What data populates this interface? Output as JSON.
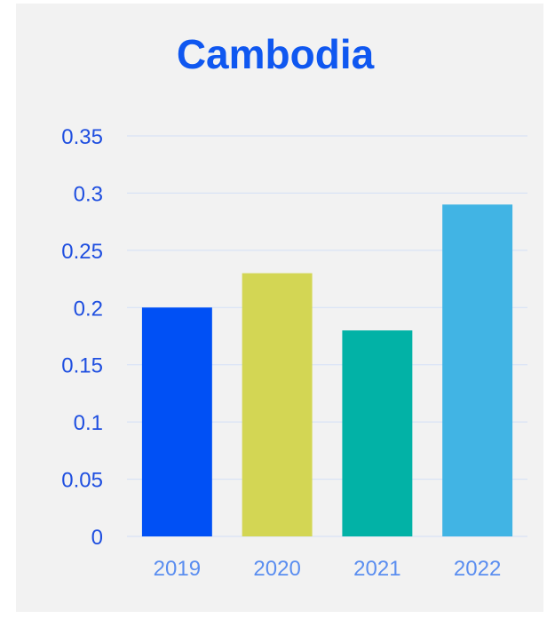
{
  "chart_data": {
    "type": "bar",
    "title": "Cambodia",
    "xlabel": "",
    "ylabel": "",
    "categories": [
      "2019",
      "2020",
      "2021",
      "2022"
    ],
    "values": [
      0.2,
      0.23,
      0.18,
      0.29
    ],
    "colors": [
      "#0050f5",
      "#d3d654",
      "#02b2a6",
      "#41b4e4"
    ],
    "ylim": [
      0,
      0.35
    ],
    "yticks": [
      "0",
      "0.05",
      "0.1",
      "0.15",
      "0.2",
      "0.25",
      "0.3",
      "0.35"
    ],
    "grid": true,
    "legend": "none"
  }
}
